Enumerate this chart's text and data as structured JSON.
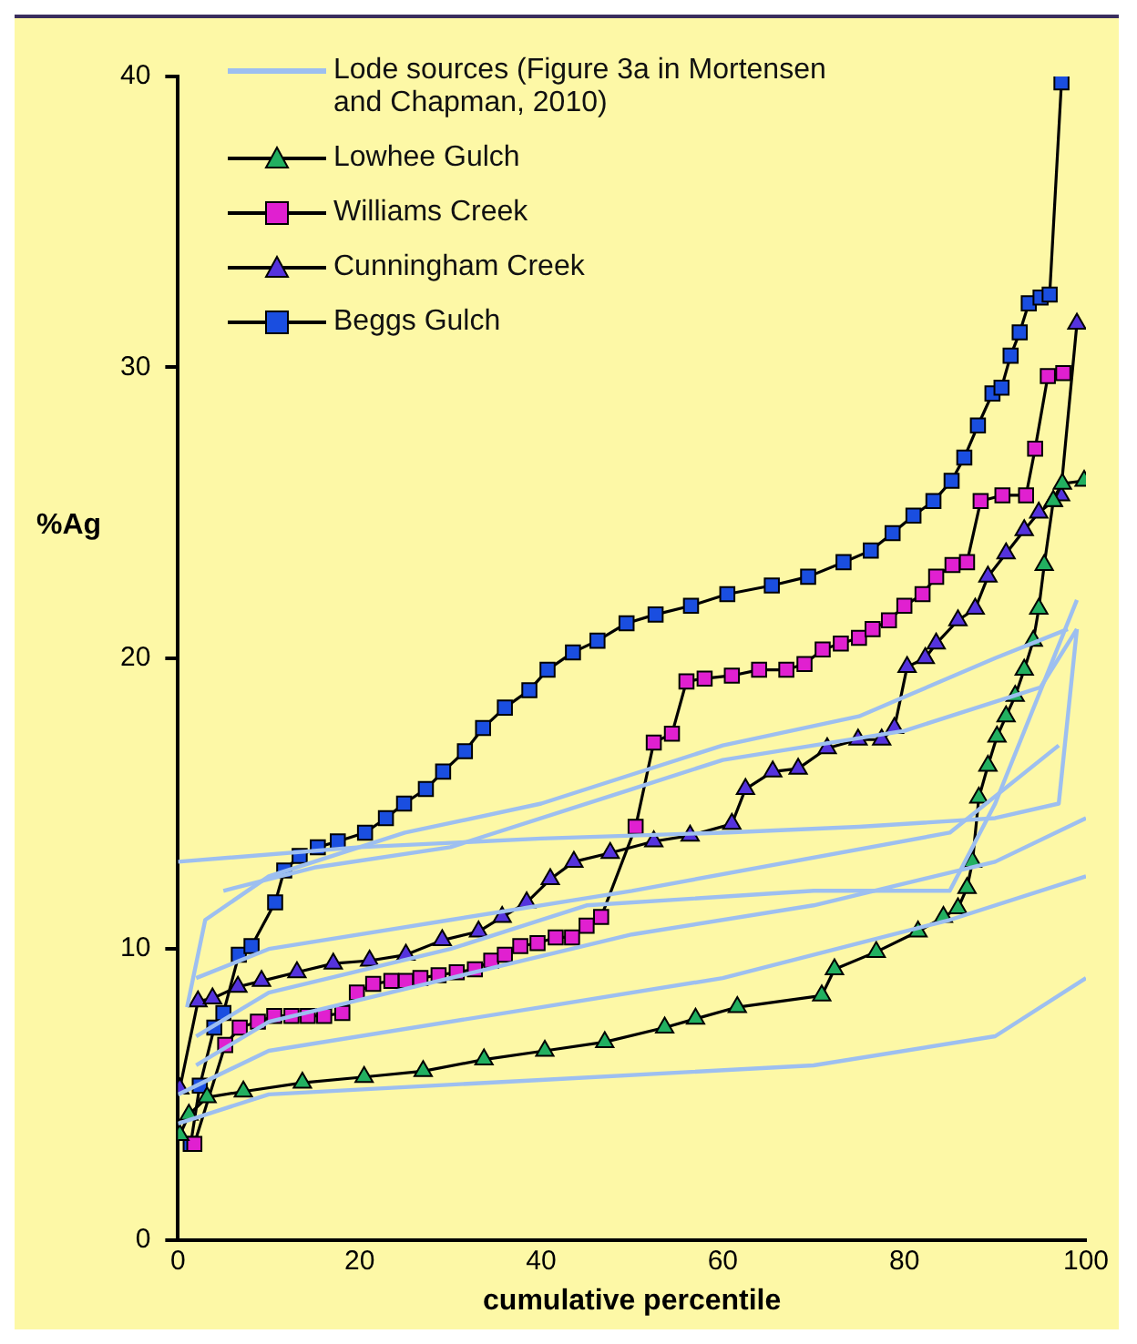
{
  "chart_data": {
    "type": "line",
    "xlabel": "cumulative percentile",
    "ylabel": "%Ag",
    "xlim": [
      0,
      100
    ],
    "xticks": [
      0,
      20,
      40,
      60,
      80,
      100
    ],
    "ylim": [
      0,
      40
    ],
    "yticks": [
      0,
      10,
      20,
      30,
      40
    ],
    "grid": false,
    "legend": "top left",
    "series": [
      {
        "name": "Lode sources (Figure 3a in Mortensen and Chapman, 2010)",
        "color": "#9dbff0",
        "marker": "none",
        "x": [
          0,
          20,
          40,
          60,
          75,
          90,
          97,
          99
        ],
        "values": [
          13,
          13.5,
          13.8,
          14,
          14.2,
          14.5,
          15,
          21
        ]
      },
      {
        "color": "#9dbff0",
        "marker": "none",
        "x": [
          5,
          15,
          30,
          50,
          60,
          80,
          95,
          99
        ],
        "values": [
          12,
          12.8,
          13.5,
          15.5,
          16.5,
          17.5,
          19,
          21
        ]
      },
      {
        "color": "#9dbff0",
        "marker": "none",
        "x": [
          1,
          3,
          10,
          25,
          40,
          60,
          75,
          90,
          98
        ],
        "values": [
          8,
          11,
          12.5,
          14,
          15,
          17,
          18,
          20,
          21
        ]
      },
      {
        "color": "#9dbff0",
        "marker": "none",
        "x": [
          0,
          10,
          40,
          70,
          90,
          100
        ],
        "values": [
          4,
          5,
          5.5,
          6,
          7,
          9
        ]
      },
      {
        "color": "#9dbff0",
        "marker": "none",
        "x": [
          0,
          10,
          40,
          60,
          85,
          100
        ],
        "values": [
          5,
          6.5,
          8,
          9,
          11,
          12.5
        ]
      },
      {
        "color": "#9dbff0",
        "marker": "none",
        "x": [
          2,
          10,
          30,
          50,
          70,
          90,
          100
        ],
        "values": [
          6,
          7.5,
          9,
          10.5,
          11.5,
          13,
          14.5
        ]
      },
      {
        "color": "#9dbff0",
        "marker": "none",
        "x": [
          2,
          10,
          30,
          50,
          85,
          97
        ],
        "values": [
          9,
          10,
          11,
          12,
          14,
          17
        ]
      },
      {
        "color": "#9dbff0",
        "marker": "none",
        "x": [
          2,
          10,
          30,
          45,
          70,
          85,
          90,
          99
        ],
        "values": [
          7,
          8.5,
          10,
          11.5,
          12,
          12,
          15,
          22
        ]
      },
      {
        "name": "Lowhee Gulch",
        "color": "#22b060",
        "marker": "triangle",
        "x": [
          0.2,
          1.2,
          3.2,
          7.2,
          13.7,
          20.5,
          27,
          33.7,
          40.4,
          47,
          53.6,
          57,
          61.6,
          70.9,
          72.3,
          76.9,
          81.5,
          84.3,
          85.9,
          86.9,
          87.5,
          88.2,
          89.2,
          90.2,
          91.2,
          92.2,
          93.2,
          94.2,
          94.8,
          95.4,
          96.4,
          97.4,
          99.8
        ],
        "values": [
          3.6,
          4.3,
          4.9,
          5.1,
          5.4,
          5.6,
          5.8,
          6.2,
          6.5,
          6.8,
          7.3,
          7.6,
          8,
          8.4,
          9.3,
          9.9,
          10.6,
          11.1,
          11.4,
          12.1,
          13,
          15.2,
          16.3,
          17.3,
          18,
          18.7,
          19.6,
          20.6,
          21.7,
          23.2,
          25.4,
          26,
          26.1
        ]
      },
      {
        "name": "Williams Creek",
        "color": "#e020d0",
        "marker": "square",
        "x": [
          1.8,
          5.2,
          6.8,
          8.8,
          10.6,
          12.5,
          14.3,
          16.1,
          18.1,
          19.7,
          21.5,
          23.5,
          25.1,
          26.7,
          28.7,
          30.7,
          32.7,
          34.5,
          36,
          37.7,
          39.6,
          41.6,
          43.4,
          45,
          46.6,
          50.4,
          52.4,
          54.4,
          56,
          58,
          61,
          64,
          67,
          69,
          71,
          73,
          75,
          76.5,
          78.3,
          80,
          82,
          83.5,
          85.3,
          86.9,
          88.4,
          90.8,
          93.4,
          94.4,
          95.8,
          97.5
        ],
        "values": [
          3.3,
          6.7,
          7.3,
          7.5,
          7.7,
          7.7,
          7.7,
          7.7,
          7.8,
          8.5,
          8.8,
          8.9,
          8.9,
          9,
          9.1,
          9.2,
          9.3,
          9.6,
          9.8,
          10.1,
          10.2,
          10.4,
          10.4,
          10.8,
          11.1,
          14.2,
          17.1,
          17.4,
          19.2,
          19.3,
          19.4,
          19.6,
          19.6,
          19.8,
          20.3,
          20.5,
          20.7,
          21,
          21.3,
          21.8,
          22.2,
          22.8,
          23.2,
          23.3,
          25.4,
          25.6,
          25.6,
          27.2,
          29.7,
          29.8
        ]
      },
      {
        "name": "Cunningham Creek",
        "color": "#5533dd",
        "marker": "triangle",
        "x": [
          0.2,
          2.2,
          3.8,
          6.6,
          9.2,
          13.1,
          17.1,
          21.1,
          25.1,
          29.1,
          33.1,
          35.7,
          38.4,
          41,
          43.6,
          47.6,
          52.4,
          56.4,
          61,
          62.5,
          65.5,
          68.3,
          71.5,
          74.9,
          77.5,
          78.9,
          80.3,
          82.3,
          83.5,
          85.9,
          87.8,
          89.2,
          91.2,
          93.2,
          94.8,
          96.4,
          97.2,
          99
        ],
        "values": [
          5.2,
          8.2,
          8.3,
          8.7,
          8.9,
          9.2,
          9.5,
          9.6,
          9.8,
          10.3,
          10.6,
          11.1,
          11.6,
          12.4,
          13,
          13.3,
          13.7,
          13.9,
          14.3,
          15.5,
          16.1,
          16.2,
          16.9,
          17.2,
          17.2,
          17.6,
          19.7,
          20,
          20.5,
          21.3,
          21.7,
          22.8,
          23.6,
          24.4,
          25,
          25.4,
          25.6,
          31.5
        ]
      },
      {
        "name": "Beggs Gulch",
        "color": "#1a4ee0",
        "marker": "square",
        "x": [
          1.4,
          2.4,
          4,
          5,
          6.7,
          8.1,
          10.7,
          11.7,
          13.4,
          15.4,
          17.6,
          20.6,
          22.9,
          24.9,
          27.3,
          29.2,
          31.6,
          33.6,
          36,
          38.7,
          40.7,
          43.5,
          46.2,
          49.4,
          52.6,
          56.5,
          60.5,
          65.4,
          69.4,
          73.3,
          76.3,
          78.7,
          81,
          83.2,
          85.2,
          86.6,
          88.1,
          89.7,
          90.7,
          91.7,
          92.7,
          93.7,
          95,
          96,
          97.3
        ],
        "values": [
          3.3,
          5.3,
          7.3,
          7.8,
          9.8,
          10.1,
          11.6,
          12.7,
          13.2,
          13.5,
          13.7,
          14,
          14.5,
          15,
          15.5,
          16.1,
          16.8,
          17.6,
          18.3,
          18.9,
          19.6,
          20.2,
          20.6,
          21.2,
          21.5,
          21.8,
          22.2,
          22.5,
          22.8,
          23.3,
          23.7,
          24.3,
          24.9,
          25.4,
          26.1,
          26.9,
          28,
          29.1,
          29.3,
          30.4,
          31.2,
          32.2,
          32.4,
          32.5,
          39.8
        ]
      }
    ]
  }
}
